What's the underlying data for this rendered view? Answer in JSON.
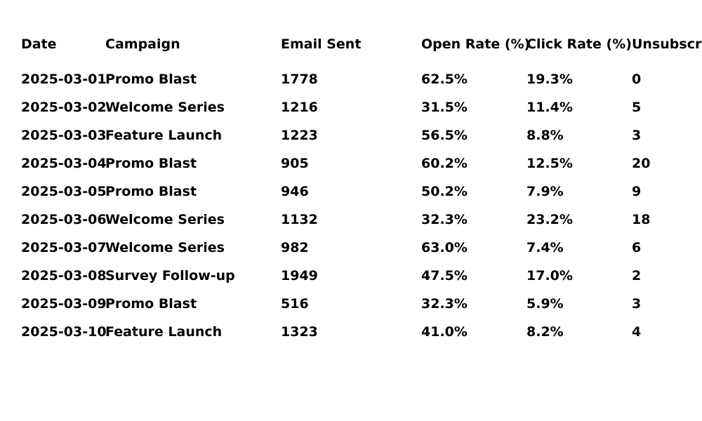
{
  "chart_data": {
    "type": "table",
    "columns": [
      "Date",
      "Campaign",
      "Email Sent",
      "Open Rate (%)",
      "Click Rate (%)",
      "Unsubscribes"
    ],
    "rows": [
      [
        "2025-03-01",
        "Promo Blast",
        "1778",
        "62.5%",
        "19.3%",
        "0"
      ],
      [
        "2025-03-02",
        "Welcome Series",
        "1216",
        "31.5%",
        "11.4%",
        "5"
      ],
      [
        "2025-03-03",
        "Feature Launch",
        "1223",
        "56.5%",
        "8.8%",
        "3"
      ],
      [
        "2025-03-04",
        "Promo Blast",
        "905",
        "60.2%",
        "12.5%",
        "20"
      ],
      [
        "2025-03-05",
        "Promo Blast",
        "946",
        "50.2%",
        "7.9%",
        "9"
      ],
      [
        "2025-03-06",
        "Welcome Series",
        "1132",
        "32.3%",
        "23.2%",
        "18"
      ],
      [
        "2025-03-07",
        "Welcome Series",
        "982",
        "63.0%",
        "7.4%",
        "6"
      ],
      [
        "2025-03-08",
        "Survey Follow-up",
        "1949",
        "47.5%",
        "17.0%",
        "2"
      ],
      [
        "2025-03-09",
        "Promo Blast",
        "516",
        "32.3%",
        "5.9%",
        "3"
      ],
      [
        "2025-03-10",
        "Feature Launch",
        "1323",
        "41.0%",
        "8.2%",
        "4"
      ]
    ]
  }
}
